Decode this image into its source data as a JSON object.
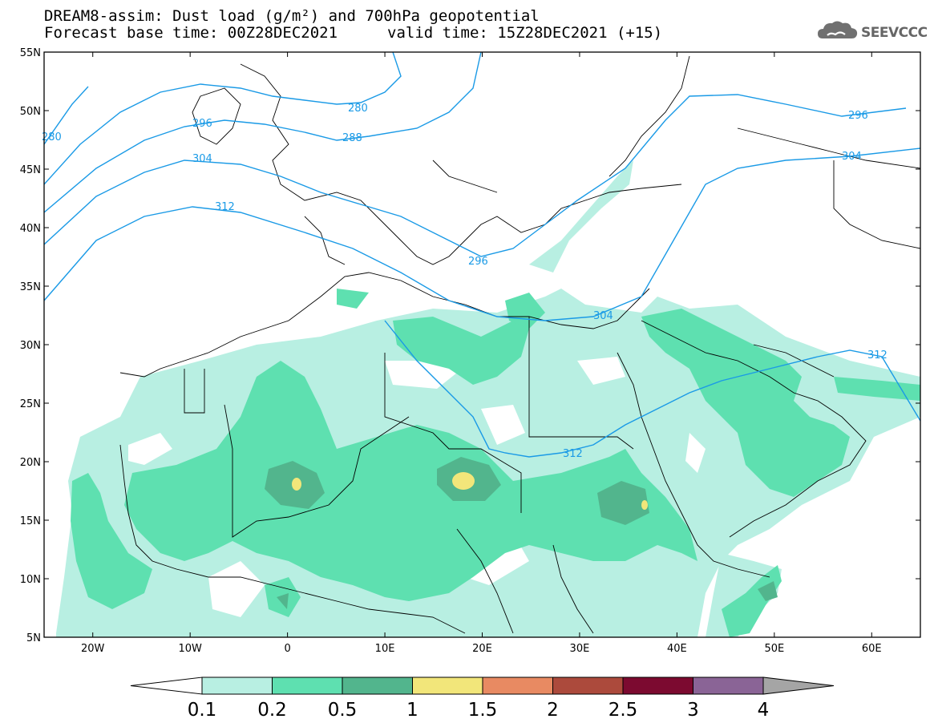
{
  "title": {
    "line1": "DREAM8-assim: Dust load (g/m²) and 700hPa geopotential",
    "line2_base": "Forecast base time: 00Z28DEC2021",
    "line2_valid": "valid time: 15Z28DEC2021 (+15)"
  },
  "logo": {
    "text": "SEEVCCC",
    "icon": "cloud-icon"
  },
  "axes": {
    "lat_labels": [
      "55N",
      "50N",
      "45N",
      "40N",
      "35N",
      "30N",
      "25N",
      "20N",
      "15N",
      "10N",
      "5N"
    ],
    "lon_labels": [
      "20W",
      "10W",
      "0",
      "10E",
      "20E",
      "30E",
      "40E",
      "50E",
      "60E"
    ]
  },
  "contours": {
    "color": "#1a9ae6",
    "labels": [
      "280",
      "288",
      "296",
      "304",
      "312",
      "296",
      "304",
      "312",
      "296",
      "304",
      "312",
      "280"
    ]
  },
  "colorbar": {
    "labels": [
      "0.1",
      "0.2",
      "0.5",
      "1",
      "1.5",
      "2",
      "2.5",
      "3",
      "4"
    ],
    "colors": [
      "#ffffff",
      "#b8efe2",
      "#5ee0b0",
      "#52b58d",
      "#f2e67a",
      "#e88a62",
      "#ac4a3c",
      "#7c0a30",
      "#8a6496",
      "#a5a5a5"
    ]
  }
}
